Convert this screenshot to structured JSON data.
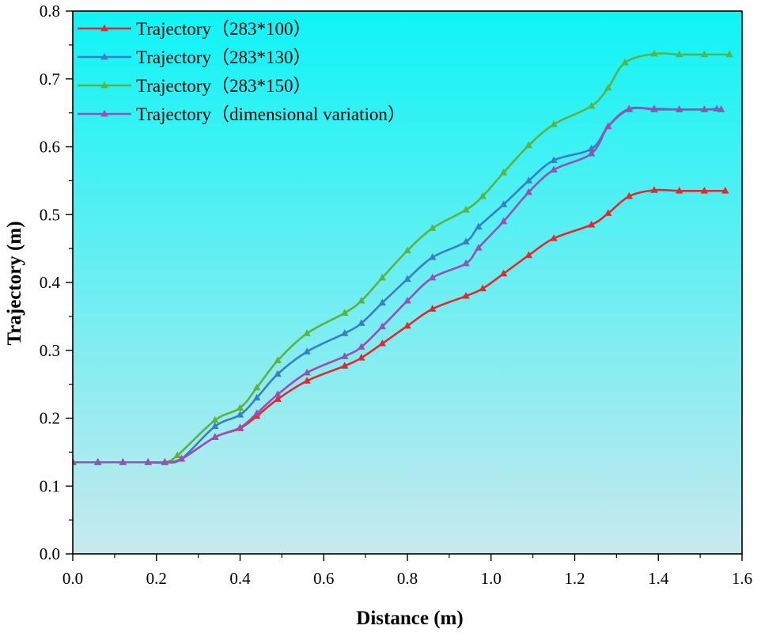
{
  "chart_data": {
    "type": "line",
    "title": "",
    "xlabel": "Distance (m)",
    "ylabel": "Trajectory (m)",
    "xlim": [
      0.0,
      1.6
    ],
    "ylim": [
      0.0,
      0.8
    ],
    "xticks": [
      "0.0",
      "0.2",
      "0.4",
      "0.6",
      "0.8",
      "1.0",
      "1.2",
      "1.4",
      "1.6"
    ],
    "yticks": [
      "0.0",
      "0.1",
      "0.2",
      "0.3",
      "0.4",
      "0.5",
      "0.6",
      "0.7",
      "0.8"
    ],
    "grid": false,
    "legend_position": "top-left",
    "background": {
      "top": "#0ef4f6",
      "bottom": "#c8e9ee"
    },
    "series": [
      {
        "name": "Trajectory（283*100）",
        "color": "#e8262a",
        "x": [
          0.0,
          0.06,
          0.12,
          0.18,
          0.22,
          0.26,
          0.34,
          0.4,
          0.44,
          0.49,
          0.56,
          0.65,
          0.69,
          0.74,
          0.8,
          0.86,
          0.94,
          0.98,
          1.03,
          1.09,
          1.15,
          1.24,
          1.28,
          1.33,
          1.39,
          1.45,
          1.51,
          1.56
        ],
        "values": [
          0.135,
          0.135,
          0.135,
          0.135,
          0.135,
          0.14,
          0.172,
          0.185,
          0.203,
          0.228,
          0.255,
          0.277,
          0.289,
          0.31,
          0.336,
          0.361,
          0.38,
          0.391,
          0.413,
          0.44,
          0.465,
          0.485,
          0.502,
          0.527,
          0.536,
          0.535,
          0.535,
          0.535
        ]
      },
      {
        "name": "Trajectory（283*130）",
        "color": "#3b7dc6",
        "x": [
          0.0,
          0.06,
          0.12,
          0.18,
          0.22,
          0.26,
          0.34,
          0.4,
          0.44,
          0.49,
          0.56,
          0.65,
          0.69,
          0.74,
          0.8,
          0.86,
          0.94,
          0.97,
          1.03,
          1.09,
          1.15,
          1.24,
          1.28,
          1.33,
          1.39,
          1.45,
          1.51,
          1.54
        ],
        "values": [
          0.135,
          0.135,
          0.135,
          0.135,
          0.135,
          0.14,
          0.188,
          0.205,
          0.23,
          0.265,
          0.298,
          0.325,
          0.34,
          0.37,
          0.405,
          0.437,
          0.46,
          0.482,
          0.515,
          0.55,
          0.58,
          0.597,
          0.63,
          0.655,
          0.656,
          0.655,
          0.655,
          0.656
        ]
      },
      {
        "name": "Trajectory（283*150）",
        "color": "#5db33d",
        "x": [
          0.0,
          0.06,
          0.12,
          0.18,
          0.22,
          0.25,
          0.34,
          0.4,
          0.44,
          0.49,
          0.56,
          0.65,
          0.69,
          0.74,
          0.8,
          0.86,
          0.94,
          0.98,
          1.03,
          1.09,
          1.15,
          1.24,
          1.28,
          1.32,
          1.39,
          1.45,
          1.51,
          1.57
        ],
        "values": [
          0.135,
          0.135,
          0.135,
          0.135,
          0.135,
          0.145,
          0.197,
          0.215,
          0.245,
          0.285,
          0.325,
          0.355,
          0.373,
          0.407,
          0.447,
          0.48,
          0.507,
          0.527,
          0.562,
          0.602,
          0.633,
          0.66,
          0.687,
          0.724,
          0.737,
          0.736,
          0.736,
          0.736
        ]
      },
      {
        "name": "Trajectory（dimensional variation）",
        "color": "#9b4fb4",
        "x": [
          0.0,
          0.06,
          0.12,
          0.18,
          0.22,
          0.26,
          0.34,
          0.4,
          0.44,
          0.49,
          0.56,
          0.65,
          0.69,
          0.74,
          0.8,
          0.86,
          0.94,
          0.97,
          1.03,
          1.09,
          1.15,
          1.24,
          1.28,
          1.33,
          1.39,
          1.45,
          1.51,
          1.55
        ],
        "values": [
          0.135,
          0.135,
          0.135,
          0.135,
          0.135,
          0.14,
          0.172,
          0.186,
          0.207,
          0.235,
          0.267,
          0.291,
          0.305,
          0.335,
          0.373,
          0.407,
          0.428,
          0.451,
          0.49,
          0.533,
          0.566,
          0.59,
          0.63,
          0.656,
          0.655,
          0.655,
          0.655,
          0.655
        ]
      }
    ]
  }
}
